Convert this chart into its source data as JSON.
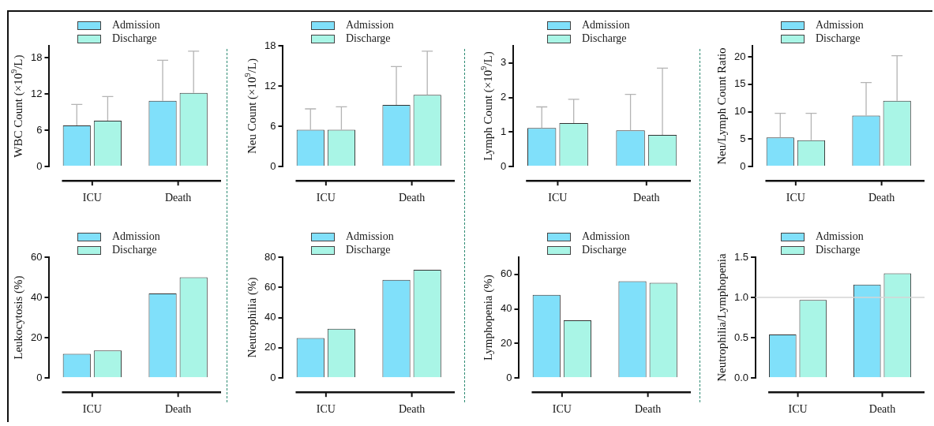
{
  "chart_data": [
    {
      "type": "bar",
      "ylabel": "WBC Count (×10$^{9}$/L)",
      "categories": [
        "ICU",
        "Death"
      ],
      "ylim": [
        0,
        20
      ],
      "yticks": [
        0,
        6,
        12,
        18
      ],
      "legend": "top left",
      "series": [
        {
          "name": "Admission",
          "color": "#80e0fa",
          "values": [
            6.8,
            10.9
          ],
          "errors": [
            [
              6.8,
              10.3
            ],
            [
              10.9,
              17.6
            ]
          ]
        },
        {
          "name": "Discharge",
          "color": "#a9f5e6",
          "values": [
            7.6,
            12.2
          ],
          "errors": [
            [
              7.6,
              11.6
            ],
            [
              12.2,
              19.1
            ]
          ]
        }
      ]
    },
    {
      "type": "bar",
      "ylabel": "Neu Count (×10$^{9}$/L)",
      "categories": [
        "ICU",
        "Death"
      ],
      "ylim": [
        0,
        18
      ],
      "yticks": [
        0,
        6,
        12,
        18
      ],
      "legend": "top left",
      "series": [
        {
          "name": "Admission",
          "color": "#80e0fa",
          "values": [
            5.5,
            9.2
          ],
          "errors": [
            [
              5.5,
              8.6
            ],
            [
              9.2,
              14.9
            ]
          ]
        },
        {
          "name": "Discharge",
          "color": "#a9f5e6",
          "values": [
            5.5,
            10.7
          ],
          "errors": [
            [
              5.5,
              8.9
            ],
            [
              10.7,
              17.2
            ]
          ]
        }
      ]
    },
    {
      "type": "bar",
      "ylabel": "Lymph Count (×10$^{9}$/L)",
      "categories": [
        "ICU",
        "Death"
      ],
      "ylim": [
        0,
        3.5
      ],
      "yticks": [
        0,
        1,
        2,
        3
      ],
      "legend": "top left",
      "series": [
        {
          "name": "Admission",
          "color": "#80e0fa",
          "values": [
            1.12,
            1.05
          ],
          "errors": [
            [
              1.12,
              1.73
            ],
            [
              1.05,
              2.09
            ]
          ]
        },
        {
          "name": "Discharge",
          "color": "#a9f5e6",
          "values": [
            1.26,
            0.92
          ],
          "errors": [
            [
              1.26,
              1.95
            ],
            [
              0.92,
              2.85
            ]
          ]
        }
      ]
    },
    {
      "type": "bar",
      "ylabel": "Neu/Lymph Count Ratio",
      "categories": [
        "ICU",
        "Death"
      ],
      "ylim": [
        0,
        22
      ],
      "yticks": [
        0,
        5,
        10,
        15,
        20
      ],
      "legend": "top left",
      "series": [
        {
          "name": "Admission",
          "color": "#80e0fa",
          "values": [
            5.3,
            9.3
          ],
          "errors": [
            [
              5.3,
              9.7
            ],
            [
              9.3,
              15.3
            ]
          ]
        },
        {
          "name": "Discharge",
          "color": "#a9f5e6",
          "values": [
            4.8,
            12.0
          ],
          "errors": [
            [
              4.8,
              9.7
            ],
            [
              12.0,
              20.2
            ]
          ]
        }
      ]
    },
    {
      "type": "bar",
      "ylabel": "Leukocytosis (%)",
      "categories": [
        "ICU",
        "Death"
      ],
      "ylim": [
        0,
        60
      ],
      "yticks": [
        0,
        20,
        40,
        60
      ],
      "legend": "top left",
      "series": [
        {
          "name": "Admission",
          "color": "#80e0fa",
          "values": [
            12,
            42
          ]
        },
        {
          "name": "Discharge",
          "color": "#a9f5e6",
          "values": [
            13.7,
            50
          ]
        }
      ]
    },
    {
      "type": "bar",
      "ylabel": "Neutrophilia (%)",
      "categories": [
        "ICU",
        "Death"
      ],
      "ylim": [
        0,
        80
      ],
      "yticks": [
        0,
        20,
        40,
        60,
        80
      ],
      "legend": "top left",
      "series": [
        {
          "name": "Admission",
          "color": "#80e0fa",
          "values": [
            26.5,
            65
          ]
        },
        {
          "name": "Discharge",
          "color": "#a9f5e6",
          "values": [
            32.6,
            71.6
          ]
        }
      ]
    },
    {
      "type": "bar",
      "ylabel": "Lymphopenia (%)",
      "categories": [
        "ICU",
        "Death"
      ],
      "ylim": [
        0,
        70
      ],
      "yticks": [
        0,
        20,
        40,
        60
      ],
      "legend": "top left",
      "series": [
        {
          "name": "Admission",
          "color": "#80e0fa",
          "values": [
            48.2,
            56.1
          ]
        },
        {
          "name": "Discharge",
          "color": "#a9f5e6",
          "values": [
            33.5,
            55.2
          ]
        }
      ]
    },
    {
      "type": "bar",
      "ylabel": "Neutrophilia/Lymphopenia",
      "categories": [
        "ICU",
        "Death"
      ],
      "ylim": [
        0,
        1.5
      ],
      "yticks": [
        {
          "value": 0,
          "label": "0.0"
        },
        {
          "value": 0.5,
          "label": "0.5"
        },
        {
          "value": 1,
          "label": "1.0"
        },
        1.5
      ],
      "legend": "top left",
      "ref_lines": [
        {
          "axis": "y",
          "value": 1,
          "color": "#d4d4d4"
        }
      ],
      "series": [
        {
          "name": "Admission",
          "color": "#80e0fa",
          "values": [
            0.54,
            1.16
          ]
        },
        {
          "name": "Discharge",
          "color": "#a9f5e6",
          "values": [
            0.97,
            1.3
          ]
        }
      ]
    }
  ]
}
